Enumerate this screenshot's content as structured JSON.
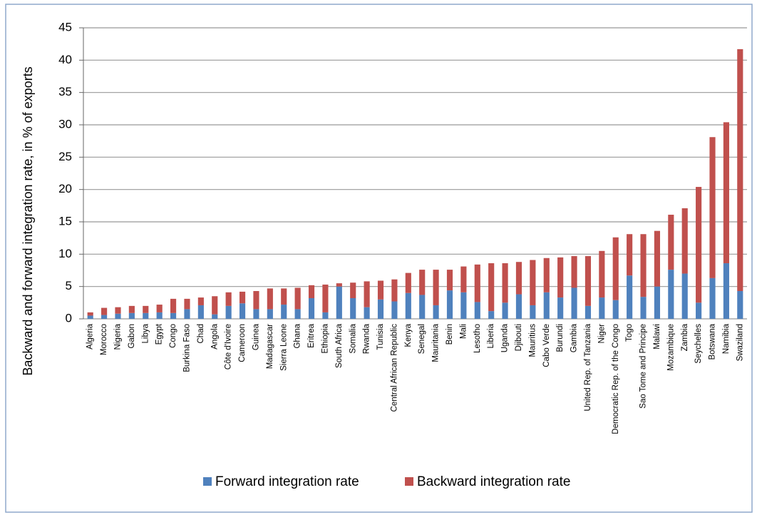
{
  "chart_data": {
    "type": "stacked-bar",
    "y_axis_label": "Backward and forward integration rate, in % of exports",
    "categories": [
      "Algeria",
      "Morocco",
      "Nigeria",
      "Gabon",
      "Libya",
      "Egypt",
      "Congo",
      "Burkina Faso",
      "Chad",
      "Angola",
      "Côte d'Ivoire",
      "Cameroon",
      "Guinea",
      "Madagascar",
      "Sierra Leone",
      "Ghana",
      "Eritrea",
      "Ethiopia",
      "South Africa",
      "Somalia",
      "Rwanda",
      "Tunisia",
      "Central African Republic",
      "Kenya",
      "Senegal",
      "Mauritania",
      "Benin",
      "Mali",
      "Lesotho",
      "Liberia",
      "Uganda",
      "Djibouti",
      "Mauritius",
      "Cabo Verde",
      "Burundi",
      "Gambia",
      "United Rep. of Tanzania",
      "Niger",
      "Democratic Rep. of the Congo",
      "Togo",
      "Sao Tome and Principe",
      "Malawi",
      "Mozambique",
      "Zambia",
      "Seychelles",
      "Botswana",
      "Namibia",
      "Swaziland"
    ],
    "series": [
      {
        "name": "Forward integration rate",
        "color": "#4f81bd",
        "values": [
          0.5,
          0.6,
          0.8,
          0.9,
          0.9,
          1.0,
          0.9,
          1.5,
          2.1,
          0.7,
          2.0,
          2.4,
          1.5,
          1.5,
          2.2,
          1.5,
          3.2,
          1.0,
          5.0,
          3.2,
          1.8,
          3.0,
          2.7,
          4.0,
          3.7,
          2.1,
          4.4,
          4.1,
          2.6,
          1.2,
          2.5,
          3.8,
          2.1,
          4.1,
          3.3,
          4.8,
          2.0,
          3.3,
          2.9,
          6.7,
          3.4,
          5.0,
          7.6,
          7.0,
          2.5,
          6.3,
          8.6,
          4.3
        ]
      },
      {
        "name": "Backward integration rate",
        "color": "#c0504d",
        "values": [
          0.5,
          1.1,
          1.0,
          1.1,
          1.1,
          1.2,
          2.2,
          1.6,
          1.2,
          2.8,
          2.1,
          1.8,
          2.8,
          3.2,
          2.5,
          3.3,
          2.0,
          4.3,
          0.5,
          2.4,
          4.0,
          2.9,
          3.4,
          3.1,
          3.9,
          5.5,
          3.2,
          4.0,
          5.8,
          7.4,
          6.1,
          5.0,
          7.0,
          5.3,
          6.2,
          4.9,
          7.7,
          7.2,
          9.7,
          6.4,
          9.7,
          8.6,
          8.5,
          10.1,
          17.9,
          21.8,
          21.8,
          37.4
        ]
      }
    ],
    "ylim": [
      0,
      45
    ],
    "yticks": [
      0,
      5,
      10,
      15,
      20,
      25,
      30,
      35,
      40,
      45
    ],
    "grid": true
  }
}
